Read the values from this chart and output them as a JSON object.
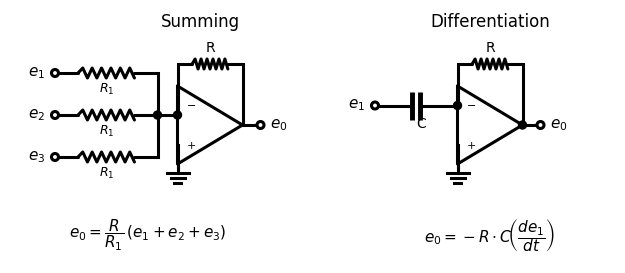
{
  "summing_title": "Summing",
  "diff_title": "Differentiation",
  "bg_color": "#ffffff",
  "fg_color": "#000000",
  "lw": 2.2,
  "lw_thick": 2.8,
  "fig_w": 6.25,
  "fig_h": 2.73,
  "dpi": 100,
  "summing_formula": "$e_0 = \\dfrac{R}{R_1}\\,(e_1 + e_2 + e_3)$",
  "diff_formula": "$e_0 = -R \\cdot C\\!\\left(\\dfrac{de_1}{dt}\\right)$",
  "title_fontsize": 12,
  "label_fontsize": 11,
  "formula_fontsize": 11,
  "small_fontsize": 9
}
